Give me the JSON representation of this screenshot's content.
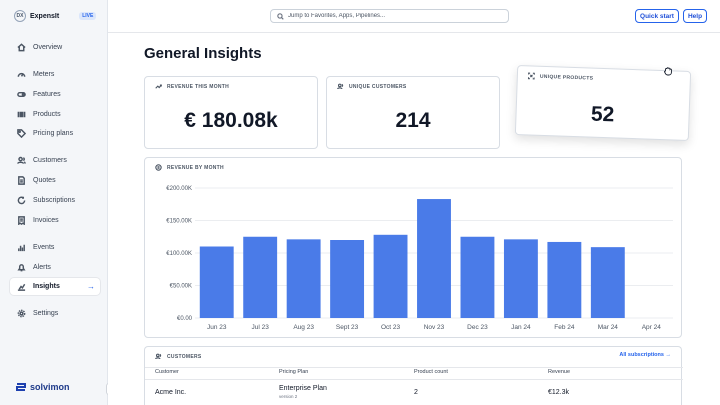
{
  "app": {
    "name": "ExpensIt",
    "logo_text": "DX",
    "env_badge": "LIVE",
    "footer_brand": "solvimon",
    "collapse_glyph": "‹"
  },
  "sidebar": {
    "items": [
      {
        "label": "Overview",
        "icon": "home-icon"
      },
      {
        "label": "Meters",
        "icon": "gauge-icon"
      },
      {
        "label": "Features",
        "icon": "toggle-icon"
      },
      {
        "label": "Products",
        "icon": "barcode-icon"
      },
      {
        "label": "Pricing plans",
        "icon": "tag-icon"
      },
      {
        "label": "Customers",
        "icon": "users-icon"
      },
      {
        "label": "Quotes",
        "icon": "document-icon"
      },
      {
        "label": "Subscriptions",
        "icon": "refresh-icon"
      },
      {
        "label": "Invoices",
        "icon": "invoice-icon"
      },
      {
        "label": "Events",
        "icon": "bars-icon"
      },
      {
        "label": "Alerts",
        "icon": "bell-icon"
      },
      {
        "label": "Insights",
        "icon": "chart-icon",
        "active": true
      },
      {
        "label": "Settings",
        "icon": "gear-icon"
      }
    ]
  },
  "topbar": {
    "search_placeholder": "Jump to Favorites, Apps, Pipelines...",
    "quick_start": "Quick start",
    "help": "Help"
  },
  "page": {
    "title": "General Insights"
  },
  "kpis": {
    "revenue": {
      "label": "REVENUE THIS MONTH",
      "value": "€ 180.08k"
    },
    "customers": {
      "label": "UNIQUE CUSTOMERS",
      "value": "214"
    },
    "products": {
      "label": "UNIQUE PRODUCTS",
      "value": "52"
    }
  },
  "chart_data": {
    "type": "bar",
    "title": "REVENUE BY MONTH",
    "categories": [
      "Jun 23",
      "Jul 23",
      "Aug 23",
      "Sept 23",
      "Oct 23",
      "Nov 23",
      "Dec 23",
      "Jan 24",
      "Feb 24",
      "Mar 24",
      "Apr 24"
    ],
    "values": [
      110000,
      125000,
      121000,
      120000,
      128000,
      183000,
      125000,
      121000,
      117000,
      109000,
      null
    ],
    "ylim": [
      0,
      200000
    ],
    "yticks": [
      "€0.00",
      "€50.00K",
      "€100.00K",
      "€150.00K",
      "€200.00K"
    ],
    "ytick_values": [
      0,
      50000,
      100000,
      150000,
      200000
    ],
    "grid": true,
    "bar_color": "#4a7be8"
  },
  "customers_table": {
    "title": "CUSTOMERS",
    "link": "All subscriptions →",
    "columns": [
      "Customer",
      "Pricing Plan",
      "Product count",
      "Revenue"
    ],
    "rows": [
      {
        "customer": "Acme Inc.",
        "plan": "Enterprise Plan",
        "plan_version": "version 2",
        "product_count": "2",
        "revenue": "€12.3k"
      }
    ]
  },
  "colors": {
    "accent": "#2563eb",
    "bar": "#4a7be8"
  }
}
